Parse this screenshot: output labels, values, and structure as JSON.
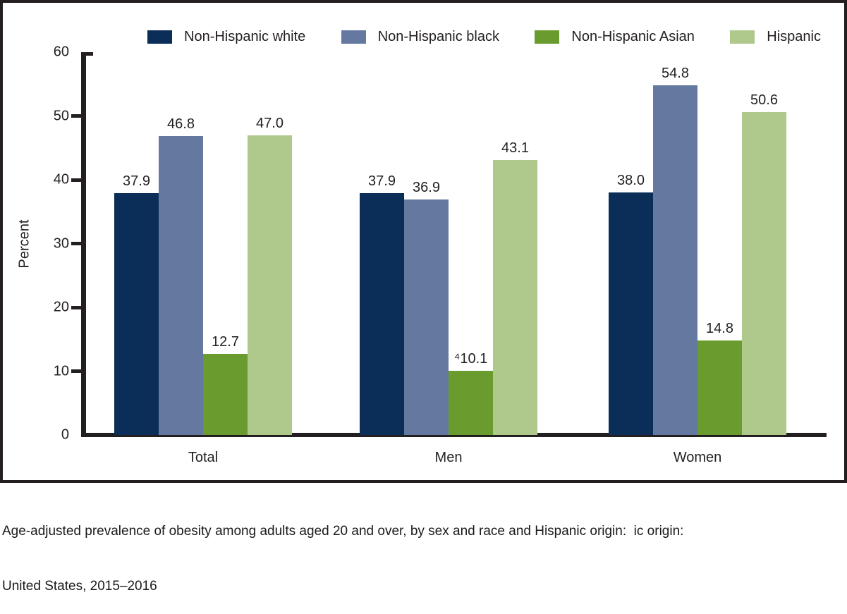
{
  "figure": {
    "caption_line1": "Age-adjusted prevalence of obesity among adults aged 20 and over, by sex and race and Hispanic origin:  ic origin:",
    "caption_line2": "United States, 2015–2016"
  },
  "chart_data": {
    "type": "bar",
    "categories": [
      "Total",
      "Men",
      "Women"
    ],
    "series": [
      {
        "name": "Non-Hispanic white",
        "color": "#0b2e59",
        "values": [
          37.9,
          37.9,
          38.0
        ],
        "value_labels": [
          "37.9",
          "37.9",
          "38.0"
        ]
      },
      {
        "name": "Non-Hispanic black",
        "color": "#65789f",
        "values": [
          46.8,
          36.9,
          54.8
        ],
        "value_labels": [
          "46.8",
          "36.9",
          "54.8"
        ]
      },
      {
        "name": "Non-Hispanic Asian",
        "color": "#699b2f",
        "values": [
          12.7,
          10.1,
          14.8
        ],
        "value_labels": [
          "12.7",
          "⁴10.1",
          "14.8"
        ]
      },
      {
        "name": "Hispanic",
        "color": "#afc98d",
        "values": [
          47.0,
          43.1,
          50.6
        ],
        "value_labels": [
          "47.0",
          "43.1",
          "50.6"
        ]
      }
    ],
    "ylabel": "Percent",
    "ylim": [
      0,
      60
    ],
    "yticks": [
      0,
      10,
      20,
      30,
      40,
      50,
      60
    ],
    "legend_position": "top",
    "grid": false
  }
}
